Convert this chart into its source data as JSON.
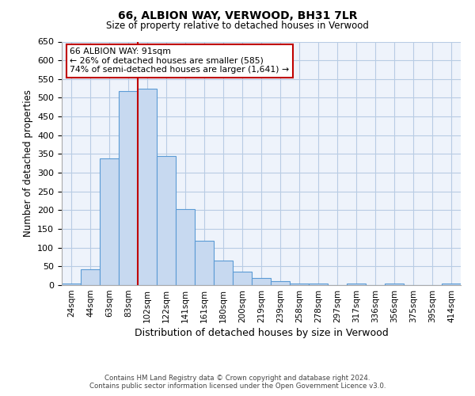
{
  "title1": "66, ALBION WAY, VERWOOD, BH31 7LR",
  "title2": "Size of property relative to detached houses in Verwood",
  "xlabel": "Distribution of detached houses by size in Verwood",
  "ylabel": "Number of detached properties",
  "bar_labels": [
    "24sqm",
    "44sqm",
    "63sqm",
    "83sqm",
    "102sqm",
    "122sqm",
    "141sqm",
    "161sqm",
    "180sqm",
    "200sqm",
    "219sqm",
    "239sqm",
    "258sqm",
    "278sqm",
    "297sqm",
    "317sqm",
    "336sqm",
    "356sqm",
    "375sqm",
    "395sqm",
    "414sqm"
  ],
  "bar_values": [
    5,
    42,
    338,
    518,
    525,
    345,
    203,
    119,
    65,
    35,
    18,
    10,
    5,
    5,
    0,
    5,
    0,
    5,
    0,
    0,
    5
  ],
  "bar_color": "#c7d9f0",
  "bar_edge_color": "#5b9bd5",
  "vline_x": 3.5,
  "vline_color": "#c00000",
  "annotation_text": "66 ALBION WAY: 91sqm\n← 26% of detached houses are smaller (585)\n74% of semi-detached houses are larger (1,641) →",
  "annotation_box_color": "#ffffff",
  "annotation_box_edge": "#c00000",
  "ylim": [
    0,
    650
  ],
  "yticks": [
    0,
    50,
    100,
    150,
    200,
    250,
    300,
    350,
    400,
    450,
    500,
    550,
    600,
    650
  ],
  "grid_color": "#b8cce4",
  "bg_color": "#eef3fb",
  "footer1": "Contains HM Land Registry data © Crown copyright and database right 2024.",
  "footer2": "Contains public sector information licensed under the Open Government Licence v3.0."
}
